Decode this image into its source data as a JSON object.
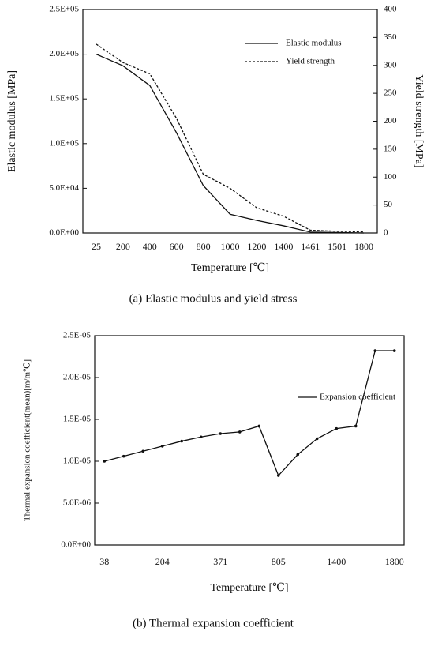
{
  "chart_data": [
    {
      "type": "line",
      "title": "(a) Elastic modulus and yield stress",
      "xlabel": "Temperature [℃]",
      "ylabel": "Elastic modulus [MPa]",
      "y2label": "Yield strength [MPa]",
      "categories": [
        "25",
        "200",
        "400",
        "600",
        "800",
        "1000",
        "1200",
        "1400",
        "1461",
        "1501",
        "1800"
      ],
      "series": [
        {
          "name": "Elastic modulus",
          "color": "#111111",
          "dash": false,
          "marker": false,
          "values": [
            200000,
            187000,
            165000,
            112000,
            53000,
            21000,
            14000,
            8000,
            1000,
            500,
            0
          ]
        },
        {
          "name": "Yield strength",
          "color": "#111111",
          "dash": true,
          "marker": false,
          "axis": "y2",
          "values": [
            338,
            305,
            285,
            205,
            105,
            80,
            45,
            30,
            5,
            3,
            2
          ]
        }
      ],
      "ylim": [
        0,
        250000
      ],
      "yticks": [
        {
          "value": 0,
          "label": "0.0E+00"
        },
        {
          "value": 50000,
          "label": "5.0E+04"
        },
        {
          "value": 100000,
          "label": "1.0E+05"
        },
        {
          "value": 150000,
          "label": "1.5E+05"
        },
        {
          "value": 200000,
          "label": "2.0E+05"
        },
        {
          "value": 250000,
          "label": "2.5E+05"
        }
      ],
      "y2lim": [
        0,
        400
      ],
      "y2ticks": [
        0,
        50,
        100,
        150,
        200,
        250,
        300,
        350,
        400
      ],
      "legend": "upper right"
    },
    {
      "type": "line",
      "title": "(b) Thermal expansion coefficient",
      "xlabel": "Temperature [℃]",
      "ylabel": "Thermal expansion coefficient(mean)[m/m℃]",
      "categories": [
        "38",
        null,
        null,
        "204",
        null,
        null,
        "371",
        null,
        null,
        "805",
        null,
        null,
        "1400",
        null,
        null,
        "1800"
      ],
      "series": [
        {
          "name": "Expansion coefficient",
          "color": "#111111",
          "dash": false,
          "marker": true,
          "values": [
            1e-05,
            1.06e-05,
            1.12e-05,
            1.18e-05,
            1.24e-05,
            1.29e-05,
            1.33e-05,
            1.35e-05,
            1.42e-05,
            8.3e-06,
            1.08e-05,
            1.27e-05,
            1.39e-05,
            1.42e-05,
            2.32e-05,
            2.32e-05
          ]
        }
      ],
      "ylim": [
        0,
        2.5e-05
      ],
      "yticks": [
        {
          "value": 0,
          "label": "0.0E+00"
        },
        {
          "value": 5e-06,
          "label": "5.0E-06"
        },
        {
          "value": 1e-05,
          "label": "1.0E-05"
        },
        {
          "value": 1.5e-05,
          "label": "1.5E-05"
        },
        {
          "value": 2e-05,
          "label": "2.0E-05"
        },
        {
          "value": 2.5e-05,
          "label": "2.5E-05"
        }
      ],
      "legend": "upper right"
    }
  ]
}
